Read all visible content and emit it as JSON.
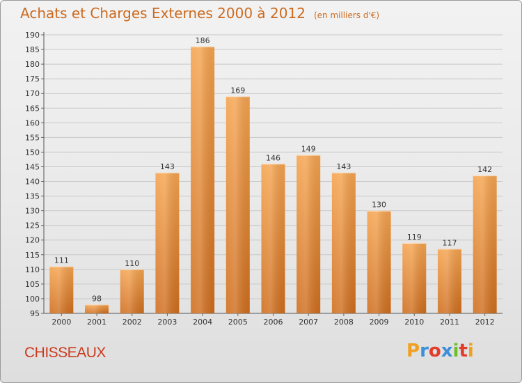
{
  "header": {
    "title": "Achats et Charges Externes 2000 à 2012",
    "subtitle": "(en milliers d'€)"
  },
  "footer": {
    "place": "CHISSEAUX",
    "logo": {
      "letters": [
        "P",
        "r",
        "o",
        "x",
        "i",
        "t",
        "i"
      ],
      "colors": [
        "#f0a020",
        "#3c8fd8",
        "#e23c2a",
        "#3c8fd8",
        "#6cbf2a",
        "#e23c2a",
        "#f0a020"
      ]
    }
  },
  "colors": {
    "bar_top": "#f5a450",
    "bar_bottom": "#cf6e1e",
    "title": "#cc6a1e",
    "place": "#cc3a1e"
  },
  "chart_data": {
    "type": "bar",
    "title": "Achats et Charges Externes 2000 à 2012",
    "subtitle": "(en milliers d'€)",
    "xlabel": "",
    "ylabel": "",
    "categories": [
      "2000",
      "2001",
      "2002",
      "2003",
      "2004",
      "2005",
      "2006",
      "2007",
      "2008",
      "2009",
      "2010",
      "2011",
      "2012"
    ],
    "values": [
      111,
      98,
      110,
      143,
      186,
      169,
      146,
      149,
      143,
      130,
      119,
      117,
      142
    ],
    "ylim": [
      95,
      190
    ],
    "yticks": [
      95,
      100,
      105,
      110,
      115,
      120,
      125,
      130,
      135,
      140,
      145,
      150,
      155,
      160,
      165,
      170,
      175,
      180,
      185,
      190
    ],
    "grid": true,
    "data_labels": true
  }
}
